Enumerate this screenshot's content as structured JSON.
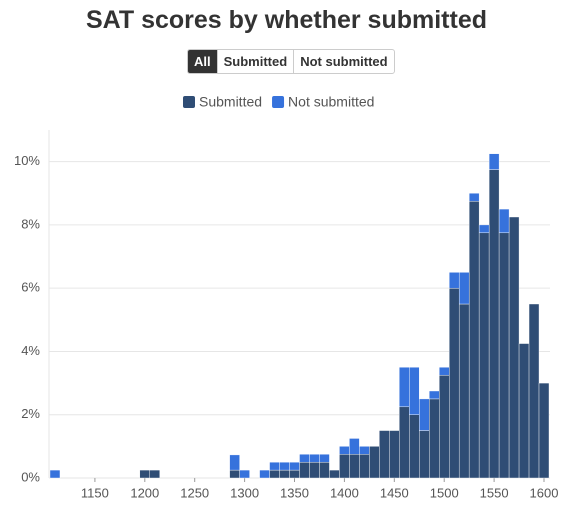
{
  "chart_data": {
    "type": "histogram",
    "title": "SAT scores by whether submitted",
    "buttons": [
      "All",
      "Submitted",
      "Not submitted"
    ],
    "active_button": 0,
    "bins": [
      1105,
      1115,
      1125,
      1135,
      1145,
      1155,
      1165,
      1175,
      1185,
      1195,
      1205,
      1215,
      1225,
      1235,
      1245,
      1255,
      1265,
      1275,
      1285,
      1295,
      1305,
      1315,
      1325,
      1335,
      1345,
      1355,
      1365,
      1375,
      1385,
      1395,
      1405,
      1415,
      1425,
      1435,
      1445,
      1455,
      1465,
      1475,
      1485,
      1495,
      1505,
      1515,
      1525,
      1535,
      1545,
      1555,
      1565,
      1575,
      1585,
      1595,
      1605
    ],
    "stacked": true,
    "series": [
      {
        "name": "Submitted",
        "color": "#2f4d75",
        "values": [
          0,
          0,
          0,
          0,
          0,
          0,
          0,
          0,
          0,
          0.25,
          0.25,
          0,
          0,
          0,
          0,
          0,
          0,
          0,
          0.25,
          0,
          0,
          0,
          0.25,
          0.25,
          0.25,
          0.5,
          0.5,
          0.5,
          0.25,
          0.75,
          0.75,
          0.75,
          1.0,
          1.5,
          1.5,
          2.25,
          2.0,
          1.5,
          2.5,
          3.25,
          6.0,
          5.5,
          8.75,
          7.75,
          9.75,
          7.75,
          8.25,
          4.25,
          5.5,
          3.0
        ]
      },
      {
        "name": "Not submitted",
        "color": "#3672dc",
        "values": [
          0.25,
          0,
          0,
          0,
          0,
          0,
          0,
          0,
          0,
          0,
          0,
          0,
          0,
          0,
          0,
          0,
          0,
          0,
          0.48,
          0.25,
          0,
          0.25,
          0.25,
          0.25,
          0.25,
          0.25,
          0.25,
          0.25,
          0,
          0.25,
          0.5,
          0.25,
          0,
          0,
          0,
          1.25,
          1.5,
          1.0,
          0.25,
          0.25,
          0.5,
          1.0,
          0.25,
          0.25,
          0.5,
          0.75,
          0,
          0,
          0,
          0
        ]
      }
    ],
    "xlim": [
      1104,
      1606
    ],
    "xticks": [
      1150,
      1200,
      1250,
      1300,
      1350,
      1400,
      1450,
      1500,
      1550,
      1600
    ],
    "ylim": [
      0,
      11
    ],
    "yticks": [
      {
        "value": 0,
        "label": "0%"
      },
      {
        "value": 2,
        "label": "2%"
      },
      {
        "value": 4,
        "label": "4%"
      },
      {
        "value": 6,
        "label": "6%"
      },
      {
        "value": 8,
        "label": "8%"
      },
      {
        "value": 10,
        "label": "10%"
      }
    ],
    "grid": true
  }
}
